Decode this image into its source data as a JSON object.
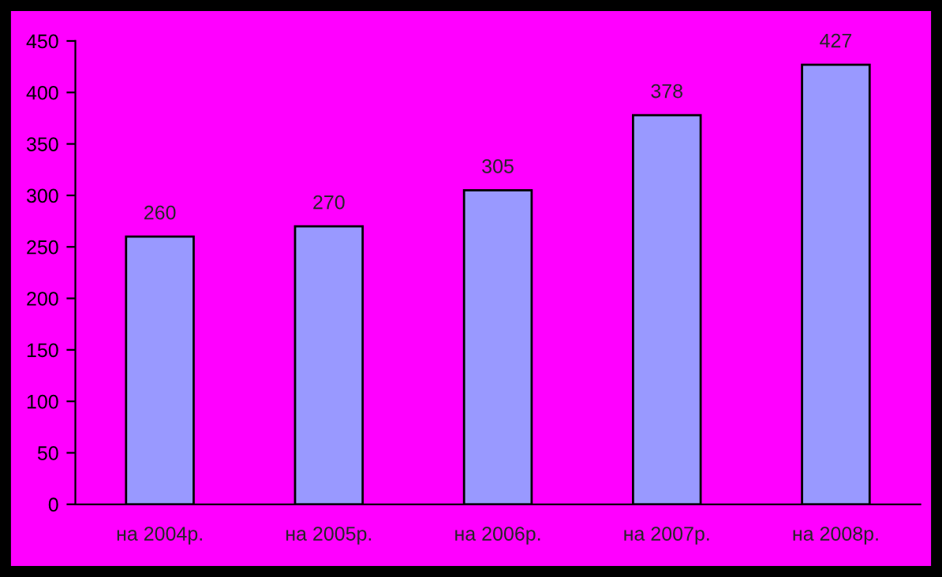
{
  "chart_data": {
    "type": "bar",
    "categories": [
      "на 2004р.",
      "на 2005р.",
      "на 2006р.",
      "на 2007р.",
      "на 2008р."
    ],
    "values": [
      260,
      270,
      305,
      378,
      427
    ],
    "color": "#9999ff",
    "ylim": [
      0,
      450
    ],
    "yticks": [
      0,
      50,
      100,
      150,
      200,
      250,
      300,
      350,
      400,
      450
    ],
    "data_labels": true,
    "grid": false,
    "legend": false
  }
}
